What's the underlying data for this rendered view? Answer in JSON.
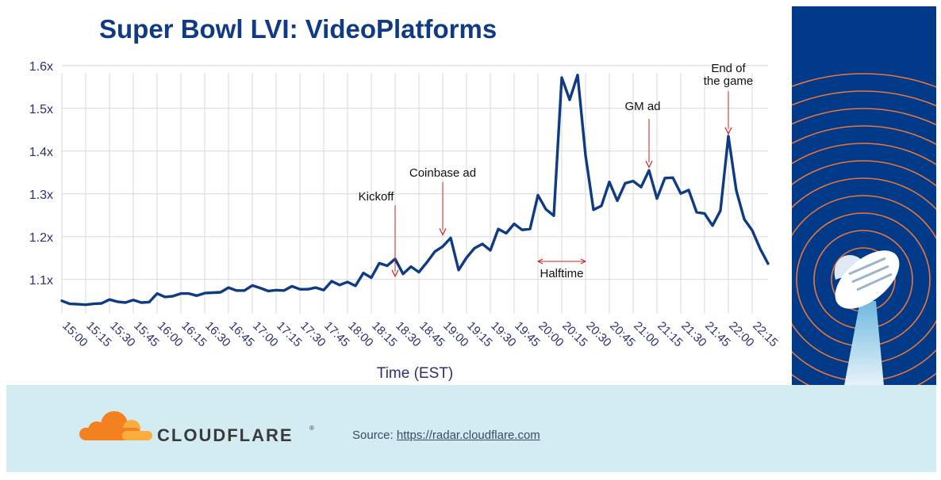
{
  "title": "Super Bowl LVI: VideoPlatforms",
  "footer": {
    "brand": "CLOUDFLARE",
    "brand_mark": "®",
    "source_label": "Source:",
    "source_link": "https://radar.cloudflare.com"
  },
  "colors": {
    "title": "#0f3b82",
    "line": "#0f3b82",
    "annotation": "#d11f1f",
    "footer_bg": "#d3ecf2",
    "panel_bg": "#003a88",
    "cloudflare_orange": "#f48120"
  },
  "chart_data": {
    "type": "line",
    "title": "Super Bowl LVI: VideoPlatforms",
    "xlabel": "Time (EST)",
    "ylabel": "",
    "ylim": [
      1.02,
      1.62
    ],
    "yticks": [
      1.1,
      1.2,
      1.3,
      1.4,
      1.5,
      1.6
    ],
    "ytick_labels": [
      "1.1x",
      "1.2x",
      "1.3x",
      "1.4x",
      "1.5x",
      "1.6x"
    ],
    "xtick_labels": [
      "15:00",
      "15:15",
      "15:30",
      "15:45",
      "16:00",
      "16:15",
      "16:30",
      "16:45",
      "17:00",
      "17:15",
      "17:30",
      "17:45",
      "18:00",
      "18:15",
      "18:30",
      "18:45",
      "19:00",
      "19:15",
      "19:30",
      "19:45",
      "20:00",
      "20:15",
      "20:30",
      "20:45",
      "21:00",
      "21:15",
      "21:30",
      "21:45",
      "22:00",
      "22:15"
    ],
    "grid": true,
    "series": [
      {
        "values": [
          1.05,
          1.043,
          1.042,
          1.041,
          1.043,
          1.044,
          1.053,
          1.048,
          1.046,
          1.052,
          1.046,
          1.047,
          1.067,
          1.059,
          1.061,
          1.067,
          1.067,
          1.062,
          1.068,
          1.069,
          1.07,
          1.081,
          1.074,
          1.074,
          1.086,
          1.08,
          1.073,
          1.075,
          1.074,
          1.084,
          1.077,
          1.077,
          1.081,
          1.075,
          1.096,
          1.087,
          1.094,
          1.085,
          1.115,
          1.104,
          1.138,
          1.132,
          1.148,
          1.113,
          1.13,
          1.117,
          1.14,
          1.165,
          1.177,
          1.197,
          1.122,
          1.151,
          1.173,
          1.183,
          1.168,
          1.218,
          1.208,
          1.23,
          1.216,
          1.218,
          1.297,
          1.264,
          1.249,
          1.572,
          1.52,
          1.578,
          1.39,
          1.263,
          1.272,
          1.328,
          1.284,
          1.325,
          1.33,
          1.316,
          1.355,
          1.289,
          1.337,
          1.338,
          1.301,
          1.309,
          1.257,
          1.254,
          1.226,
          1.261,
          1.435,
          1.308,
          1.241,
          1.215,
          1.172,
          1.137
        ]
      }
    ],
    "annotations": [
      {
        "label": "Kickoff",
        "time": "18:30"
      },
      {
        "label": "Coinbase ad",
        "time": "19:00"
      },
      {
        "label": "Halftime",
        "time": "20:00 – 20:30"
      },
      {
        "label": "GM ad",
        "time": "21:05"
      },
      {
        "label": "End of the game",
        "time": "22:00"
      }
    ]
  }
}
